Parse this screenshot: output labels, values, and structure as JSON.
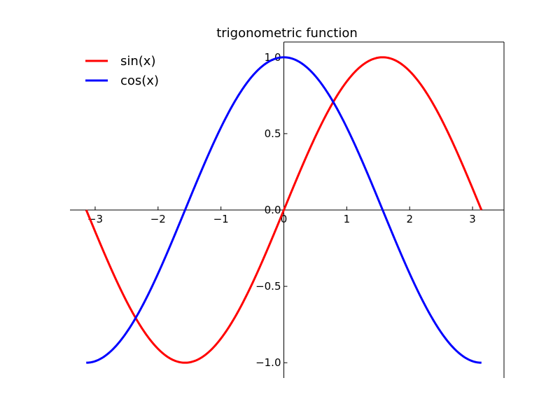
{
  "chart_data": {
    "type": "line",
    "title": "trigonometric function",
    "xlabel": "",
    "ylabel": "",
    "xlim": [
      -3.4,
      3.5
    ],
    "ylim": [
      -1.1,
      1.1
    ],
    "x_ticks": [
      -3,
      -2,
      -1,
      0,
      1,
      2,
      3
    ],
    "x_tick_labels": [
      "−3",
      "−2",
      "−1",
      "0",
      "1",
      "2",
      "3"
    ],
    "y_ticks": [
      -1.0,
      -0.5,
      0.0,
      0.5,
      1.0
    ],
    "y_tick_labels": [
      "−1.0",
      "−0.5",
      "0.0",
      "0.5",
      "1.0"
    ],
    "grid": false,
    "legend_position": "top-left",
    "spines": "centered at origin (left spine at x=0, bottom spine at y=0), right spine at plot edge",
    "x_samples": {
      "start": -3.14159,
      "end": 3.14159,
      "count": 256
    },
    "series": [
      {
        "name": "sin(x)",
        "color": "#ff0000",
        "function": "sin",
        "sample_values": {
          "x": [
            -3.14159,
            -2.35619,
            -1.5708,
            -0.7854,
            0,
            0.7854,
            1.5708,
            2.35619,
            3.14159
          ],
          "y": [
            0,
            -0.7071,
            -1,
            -0.7071,
            0,
            0.7071,
            1,
            0.7071,
            0
          ]
        }
      },
      {
        "name": "cos(x)",
        "color": "#0000ff",
        "function": "cos",
        "sample_values": {
          "x": [
            -3.14159,
            -2.35619,
            -1.5708,
            -0.7854,
            0,
            0.7854,
            1.5708,
            2.35619,
            3.14159
          ],
          "y": [
            -1,
            -0.7071,
            0,
            0.7071,
            1,
            0.7071,
            0,
            -0.7071,
            -1
          ]
        }
      }
    ]
  }
}
